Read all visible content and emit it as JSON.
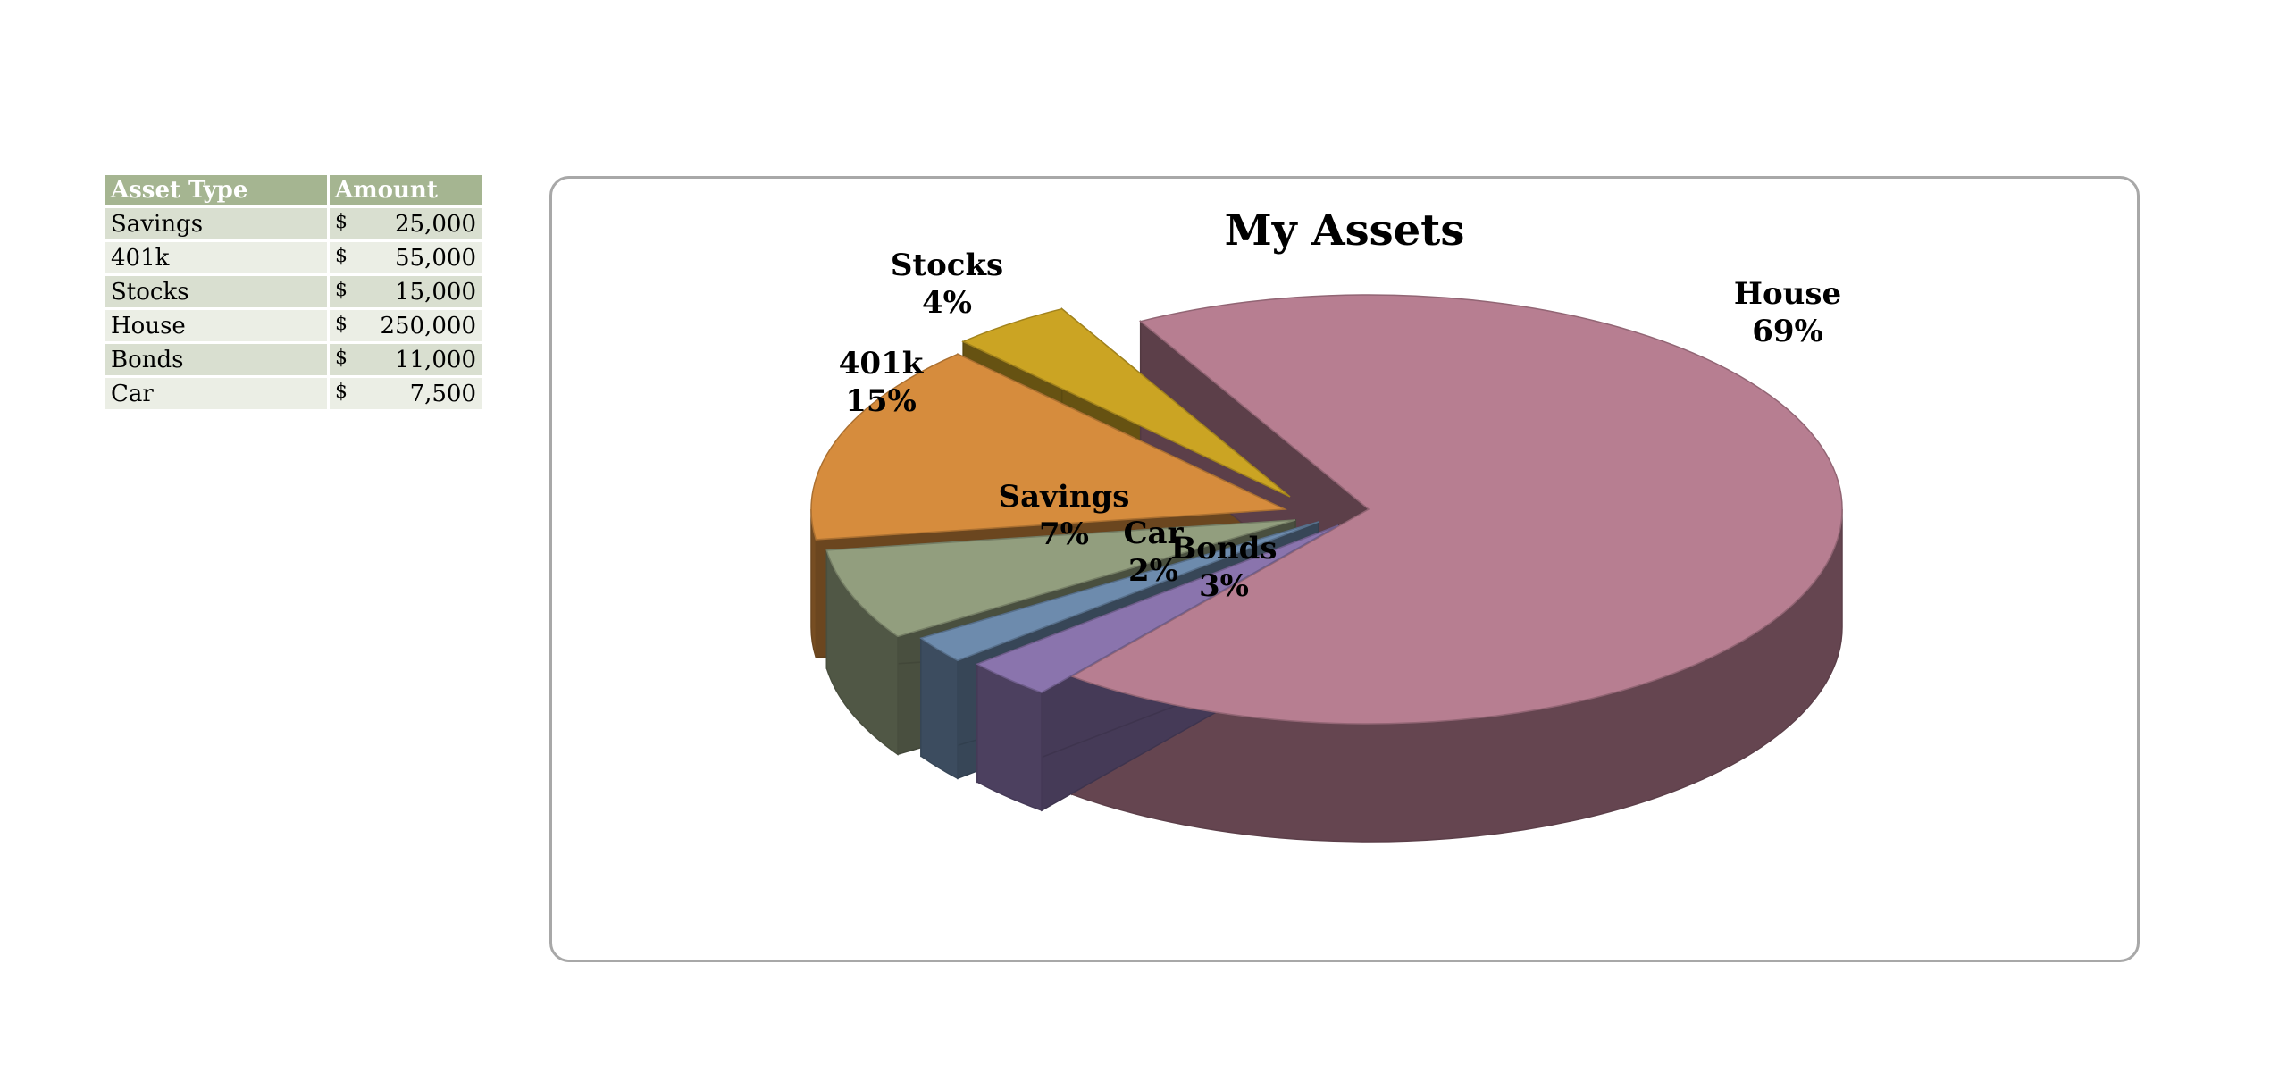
{
  "table": {
    "headers": [
      "Asset Type",
      "Amount"
    ],
    "rows": [
      {
        "type": "Savings",
        "currency": "$",
        "amount": "25,000"
      },
      {
        "type": "401k",
        "currency": "$",
        "amount": "55,000"
      },
      {
        "type": "Stocks",
        "currency": "$",
        "amount": "15,000"
      },
      {
        "type": "House",
        "currency": "$",
        "amount": "250,000"
      },
      {
        "type": "Bonds",
        "currency": "$",
        "amount": "11,000"
      },
      {
        "type": "Car",
        "currency": "$",
        "amount": "7,500"
      }
    ]
  },
  "chart_data": {
    "type": "pie",
    "title": "My Assets",
    "categories": [
      "Savings",
      "401k",
      "Stocks",
      "House",
      "Bonds",
      "Car"
    ],
    "values": [
      25000,
      55000,
      15000,
      250000,
      11000,
      7500
    ],
    "slice_labels": [
      {
        "name": "House",
        "pct": "69%"
      },
      {
        "name": "Stocks",
        "pct": "4%"
      },
      {
        "name": "401k",
        "pct": "15%"
      },
      {
        "name": "Savings",
        "pct": "7%"
      },
      {
        "name": "Car",
        "pct": "2%"
      },
      {
        "name": "Bonds",
        "pct": "3%"
      }
    ],
    "colors": {
      "House": "#b77e91",
      "Stocks": "#cba423",
      "401k": "#d68c3d",
      "Savings": "#929e7e",
      "Car": "#6d8bad",
      "Bonds": "#8a74ad"
    },
    "style": "3d-exploded",
    "legend": "none"
  }
}
